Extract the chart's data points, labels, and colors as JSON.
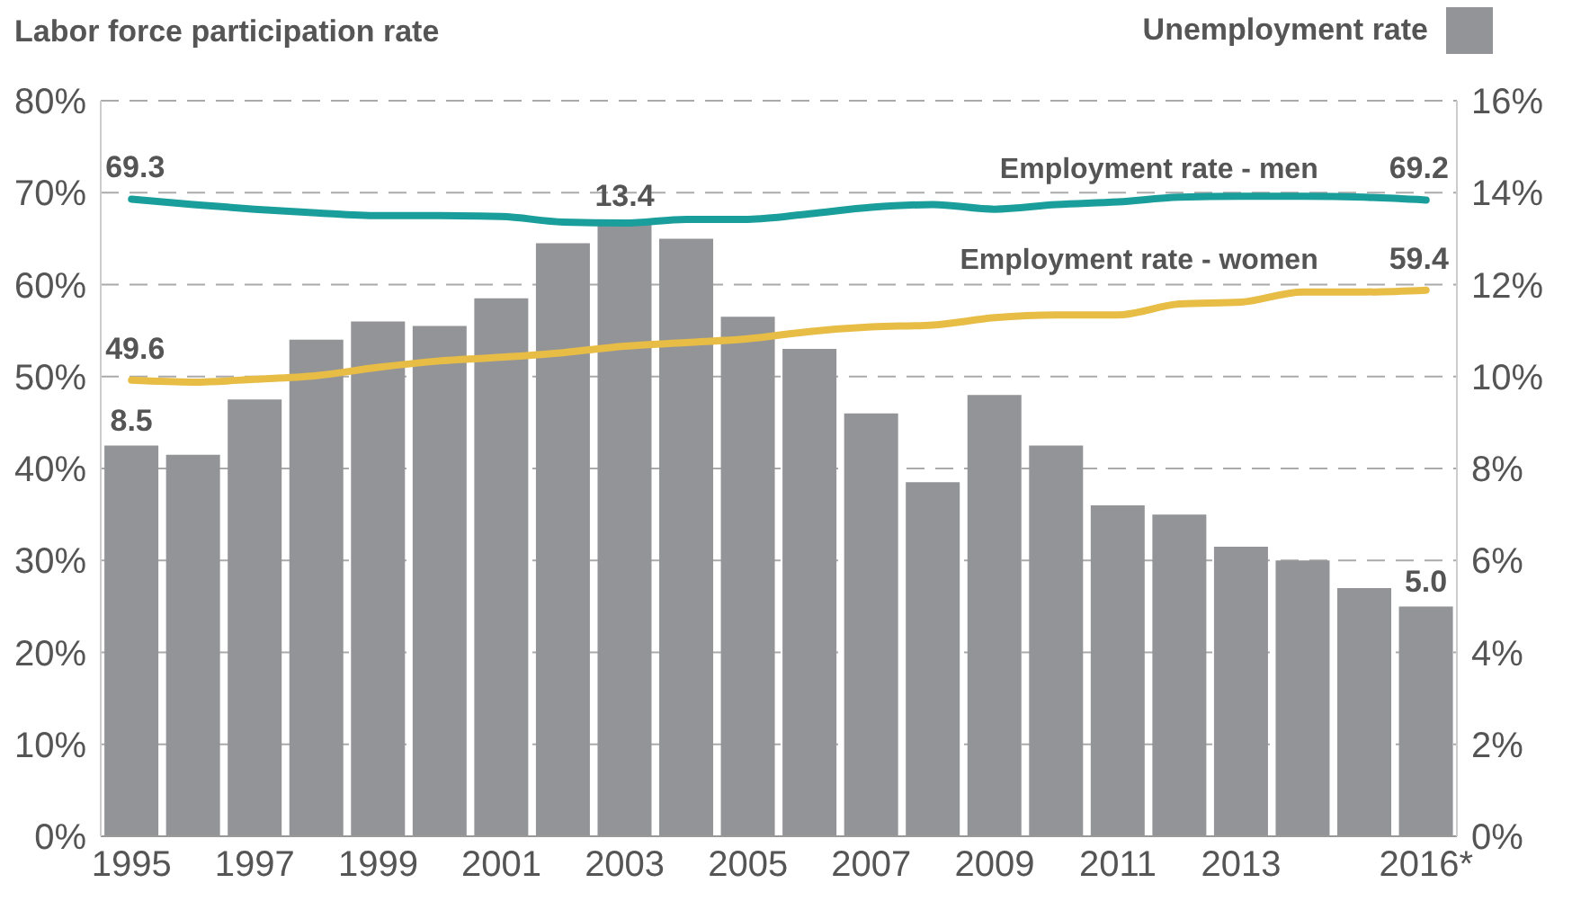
{
  "chart_data": {
    "type": "bar",
    "ylabel": "Labor force participation rate",
    "categories": [
      "1995",
      null,
      "1997",
      null,
      "1999",
      null,
      "2001",
      null,
      "2003",
      null,
      "2005",
      null,
      "2007",
      null,
      "2009",
      null,
      "2011",
      null,
      "2013",
      null,
      null,
      "2016*"
    ],
    "series": [
      {
        "name": "Unemployment rate",
        "axis": "y2",
        "color": "#939498",
        "values": [
          8.5,
          8.3,
          9.5,
          10.8,
          11.2,
          11.1,
          11.7,
          12.9,
          13.4,
          13.0,
          11.3,
          10.6,
          9.2,
          7.7,
          9.6,
          8.5,
          7.2,
          7.0,
          6.3,
          6.0,
          5.4,
          5.0
        ],
        "value_labels": [
          "8.5",
          null,
          null,
          null,
          null,
          null,
          null,
          null,
          "13.4",
          null,
          null,
          null,
          null,
          null,
          null,
          null,
          null,
          null,
          null,
          null,
          null,
          "5.0"
        ]
      },
      {
        "name": "Employment rate - men",
        "type": "line",
        "color": "#1a9e9b",
        "values": [
          69.3,
          68.7,
          68.2,
          67.8,
          67.5,
          67.5,
          67.4,
          66.8,
          66.7,
          67.1,
          67.1,
          67.7,
          68.4,
          68.7,
          68.2,
          68.7,
          69.0,
          69.5,
          69.6,
          69.6,
          69.5,
          69.2
        ],
        "value_labels": [
          "69.3",
          null,
          null,
          null,
          null,
          null,
          null,
          null,
          null,
          null,
          null,
          null,
          null,
          null,
          null,
          null,
          null,
          null,
          null,
          null,
          null,
          "69.2"
        ]
      },
      {
        "name": "Employment rate - women",
        "type": "line",
        "color": "#e8bd45",
        "values": [
          49.6,
          49.4,
          49.7,
          50.1,
          51.0,
          51.7,
          52.1,
          52.6,
          53.3,
          53.7,
          54.1,
          54.9,
          55.4,
          55.6,
          56.4,
          56.7,
          56.7,
          57.9,
          58.1,
          59.2,
          59.2,
          59.4
        ],
        "value_labels": [
          "49.6",
          null,
          null,
          null,
          null,
          null,
          null,
          null,
          null,
          null,
          null,
          null,
          null,
          null,
          null,
          null,
          null,
          null,
          null,
          null,
          null,
          "59.4"
        ]
      }
    ],
    "ylim": [
      0,
      80
    ],
    "yticks": [
      {
        "value": 0,
        "label": "0%"
      },
      {
        "value": 10,
        "label": "10%"
      },
      {
        "value": 20,
        "label": "20%"
      },
      {
        "value": 30,
        "label": "30%"
      },
      {
        "value": 40,
        "label": "40%"
      },
      {
        "value": 50,
        "label": "50%"
      },
      {
        "value": 60,
        "label": "60%"
      },
      {
        "value": 70,
        "label": "70%"
      },
      {
        "value": 80,
        "label": "80%"
      }
    ],
    "y2lim": [
      0,
      16
    ],
    "y2ticks": [
      {
        "value": 0,
        "label": "0%"
      },
      {
        "value": 2,
        "label": "2%"
      },
      {
        "value": 4,
        "label": "4%"
      },
      {
        "value": 6,
        "label": "6%"
      },
      {
        "value": 8,
        "label": "8%"
      },
      {
        "value": 10,
        "label": "10%"
      },
      {
        "value": 12,
        "label": "12%"
      },
      {
        "value": 14,
        "label": "14%"
      },
      {
        "value": 16,
        "label": "16%"
      }
    ],
    "grid": "y",
    "legend": "top right",
    "marker": "none",
    "line_style": "solid"
  }
}
